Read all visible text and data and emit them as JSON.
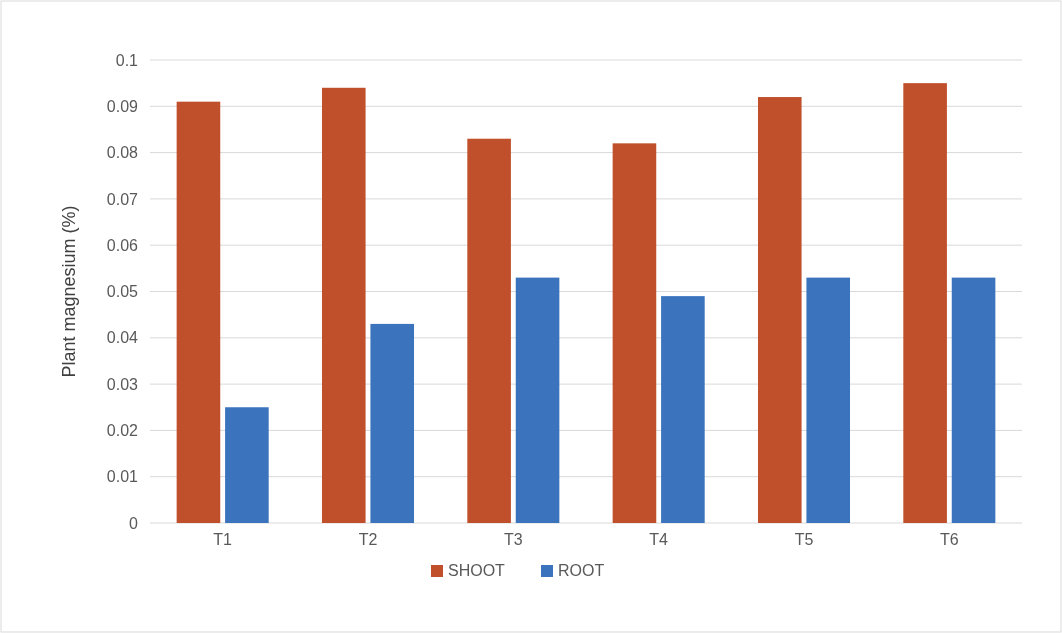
{
  "chart_data": {
    "type": "bar",
    "ylabel": "Plant magnesium (%)",
    "categories": [
      "T1",
      "T2",
      "T3",
      "T4",
      "T5",
      "T6"
    ],
    "series": [
      {
        "name": "SHOOT",
        "color": "#c0502b",
        "values": [
          0.091,
          0.094,
          0.083,
          0.082,
          0.092,
          0.095
        ]
      },
      {
        "name": "ROOT",
        "color": "#3b73bd",
        "values": [
          0.025,
          0.043,
          0.053,
          0.049,
          0.053,
          0.053
        ]
      }
    ],
    "ylim": [
      0,
      0.1
    ],
    "yticks": [
      0,
      0.01,
      0.02,
      0.03,
      0.04,
      0.05,
      0.06,
      0.07,
      0.08,
      0.09,
      0.1
    ],
    "grid": "y",
    "legend": "bottom"
  }
}
